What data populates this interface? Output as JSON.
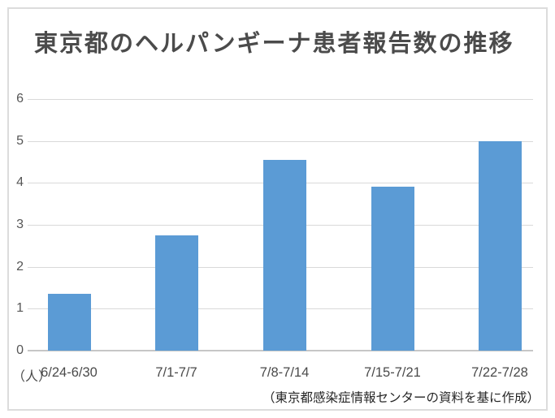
{
  "chart": {
    "title": "東京都のヘルパンギーナ患者報告数の推移",
    "unit_label": "（人）",
    "source_note": "（東京都感染症情報センターの資料を基に作成）"
  },
  "colors": {
    "bar": "#5b9bd5",
    "gridline": "#d9d9d9",
    "axis_line": "#c6c6c6",
    "title_text": "#4b4b4b",
    "tick_text": "#565656",
    "frame_border": "#dcdcdc"
  },
  "chart_data": {
    "type": "bar",
    "title": "東京都のヘルパンギーナ患者報告数の推移",
    "categories": [
      "6/24-6/30",
      "7/1-7/7",
      "7/8-7/14",
      "7/15-7/21",
      "7/22-7/28"
    ],
    "values": [
      1.35,
      2.75,
      4.55,
      3.9,
      5.0
    ],
    "xlabel": "",
    "ylabel": "（人）",
    "ylim": [
      0,
      6
    ],
    "yticks": [
      0,
      1,
      2,
      3,
      4,
      5,
      6
    ],
    "grid": true,
    "legend": false,
    "annotation": "（東京都感染症情報センターの資料を基に作成）"
  }
}
